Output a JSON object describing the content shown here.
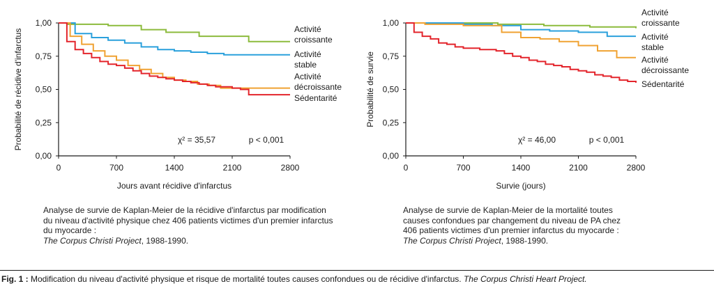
{
  "chart_data": [
    {
      "type": "line",
      "step": true,
      "xlabel": "Jours avant récidive d'infarctus",
      "ylabel": "Probabilité de récidive d'infarctus",
      "xlim": [
        0,
        2800
      ],
      "ylim": [
        0,
        1
      ],
      "xticks": [
        0,
        700,
        1400,
        2100,
        2800
      ],
      "yticks": [
        0,
        0.25,
        0.5,
        0.75,
        1
      ],
      "xtick_labels": [
        "0",
        "700",
        "1400",
        "2100",
        "2800"
      ],
      "ytick_labels": [
        "0,00",
        "0,25",
        "0,50",
        "0,75",
        "1,00"
      ],
      "annotation_stat": "χ² = 35,57",
      "annotation_p": "p < 0,001",
      "series": [
        {
          "name": "Activité croissante",
          "label_lines": [
            "Activité",
            "croissante"
          ],
          "color": "#8cbb3c",
          "x": [
            0,
            100,
            600,
            1000,
            1300,
            1700,
            2300,
            2800
          ],
          "y": [
            1,
            0.99,
            0.98,
            0.95,
            0.93,
            0.9,
            0.86,
            0.86
          ]
        },
        {
          "name": "Activité stable",
          "label_lines": [
            "Activité",
            "stable"
          ],
          "color": "#2aa0dc",
          "x": [
            0,
            100,
            200,
            400,
            800,
            1100,
            1700,
            2200,
            2800
          ],
          "y": [
            1,
            0.96,
            0.92,
            0.89,
            0.85,
            0.81,
            0.77,
            0.76,
            0.76
          ],
          "step_count": 14
        },
        {
          "name": "Activité décroissante",
          "label_lines": [
            "Activité",
            "décroissante"
          ],
          "color": "#f0a232",
          "x": [
            0,
            100,
            300,
            600,
            900,
            1200,
            1600,
            2000,
            2800
          ],
          "y": [
            1,
            0.92,
            0.83,
            0.74,
            0.67,
            0.6,
            0.55,
            0.51,
            0.51
          ],
          "step_count": 20
        },
        {
          "name": "Sédentarité",
          "label_lines": [
            "Sédentarité"
          ],
          "color": "#e3242b",
          "x": [
            0,
            50,
            150,
            300,
            500,
            800,
            1100,
            1400,
            1800,
            2200,
            2300,
            2800
          ],
          "y": [
            1,
            0.9,
            0.82,
            0.77,
            0.71,
            0.66,
            0.6,
            0.57,
            0.53,
            0.5,
            0.46,
            0.46
          ],
          "step_count": 28
        }
      ]
    },
    {
      "type": "line",
      "step": true,
      "xlabel": "Survie (jours)",
      "ylabel": "Probabilité de survie",
      "xlim": [
        0,
        2800
      ],
      "ylim": [
        0,
        1
      ],
      "xticks": [
        0,
        700,
        1400,
        2100,
        2800
      ],
      "yticks": [
        0,
        0.25,
        0.5,
        0.75,
        1
      ],
      "xtick_labels": [
        "0",
        "700",
        "1400",
        "2100",
        "2800"
      ],
      "ytick_labels": [
        "0,00",
        "0,25",
        "0,50",
        "0,75",
        "1,00"
      ],
      "annotation_stat": "χ² = 46,00",
      "annotation_p": "p < 0,001",
      "series": [
        {
          "name": "Activité croissante",
          "label_lines": [
            "Activité",
            "croissante"
          ],
          "color": "#8cbb3c",
          "x": [
            0,
            1300,
            1800,
            2200,
            2800
          ],
          "y": [
            1,
            0.99,
            0.98,
            0.97,
            0.96
          ],
          "step_count": 5
        },
        {
          "name": "Activité stable",
          "label_lines": [
            "Activité",
            "stable"
          ],
          "color": "#2aa0dc",
          "x": [
            0,
            900,
            1100,
            1400,
            1700,
            2100,
            2500,
            2800
          ],
          "y": [
            1,
            0.99,
            0.97,
            0.95,
            0.94,
            0.93,
            0.9,
            0.9
          ],
          "step_count": 8
        },
        {
          "name": "Activité décroissante",
          "label_lines": [
            "Activité",
            "décroissante"
          ],
          "color": "#f0a232",
          "x": [
            0,
            100,
            900,
            1100,
            1300,
            1600,
            2000,
            2300,
            2500,
            2800
          ],
          "y": [
            1,
            0.99,
            0.98,
            0.95,
            0.9,
            0.88,
            0.85,
            0.8,
            0.74,
            0.74
          ],
          "step_count": 12
        },
        {
          "name": "Sédentarité",
          "label_lines": [
            "Sédentarité"
          ],
          "color": "#e3242b",
          "x": [
            0,
            50,
            200,
            400,
            700,
            1000,
            1200,
            1500,
            1800,
            2100,
            2400,
            2800
          ],
          "y": [
            1,
            0.95,
            0.9,
            0.85,
            0.81,
            0.8,
            0.77,
            0.72,
            0.68,
            0.64,
            0.6,
            0.55
          ],
          "step_count": 28
        }
      ]
    }
  ],
  "captions": {
    "left_main": "Analyse de survie de Kaplan-Meier de la récidive d'infarctus par modification du niveau d'activité physique chez 406 patients victimes d'un premier infarctus du myocarde :",
    "left_italic": "The Corpus Christi Project",
    "left_tail": ", 1988-1990.",
    "right_main": "Analyse de survie de Kaplan-Meier de la mortalité toutes causes confondues par changement du niveau de PA chez 406 patients victimes d'un premier infarctus du myocarde :",
    "right_italic": "The Corpus Christi Project",
    "right_tail": ", 1988-1990."
  },
  "figure_caption": {
    "label": "Fig. 1 :",
    "text": " Modification du niveau d'activité physique et risque de mortalité toutes causes confondues ou de récidive d'infarctus. ",
    "italic": "The Corpus Christi Heart Project."
  }
}
